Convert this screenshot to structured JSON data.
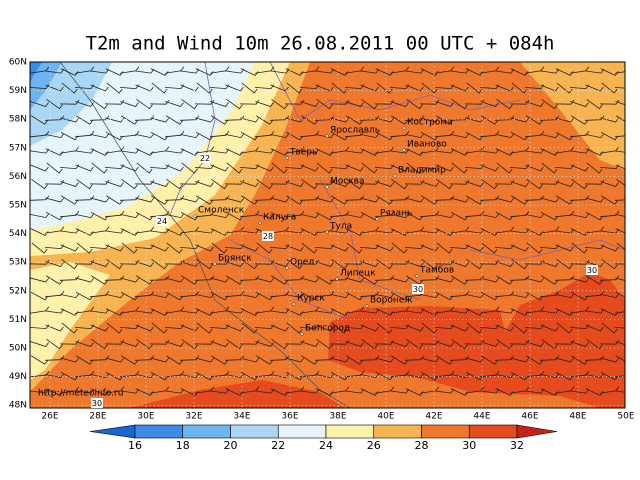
{
  "title": "T2m and Wind 10m 26.08.2011 00 UTC + 084h",
  "lat_labels": [
    "60N",
    "59N",
    "58N",
    "57N",
    "56N",
    "55N",
    "54N",
    "53N",
    "52N",
    "51N",
    "50N",
    "49N",
    "48N"
  ],
  "lon_labels": [
    "26E",
    "28E",
    "30E",
    "32E",
    "34E",
    "36E",
    "38E",
    "40E",
    "42E",
    "44E",
    "46E",
    "48E",
    "50E"
  ],
  "cities": [
    "Кострома",
    "Ярославль",
    "Иваново",
    "Тверь",
    "Владимир",
    "Москва",
    "Смоленск",
    "Калуга",
    "Рязань",
    "Тула",
    "Брянск",
    "Орел",
    "Липецк",
    "Тамбов",
    "Воронеж",
    "Курск",
    "Белгород"
  ],
  "contour_labels": [
    22,
    24,
    28,
    30,
    30,
    30
  ],
  "watermark": "http://meteoinfo.ru",
  "colorbar": {
    "ticks": [
      16,
      18,
      20,
      22,
      24,
      26,
      28,
      30,
      32
    ],
    "colors": [
      "#1e64d2",
      "#3c8ce6",
      "#6eb4f0",
      "#aad7f5",
      "#e6f5fa",
      "#fff0aa",
      "#f8b450",
      "#f0782d",
      "#e64b1e",
      "#c81e1e"
    ]
  }
}
